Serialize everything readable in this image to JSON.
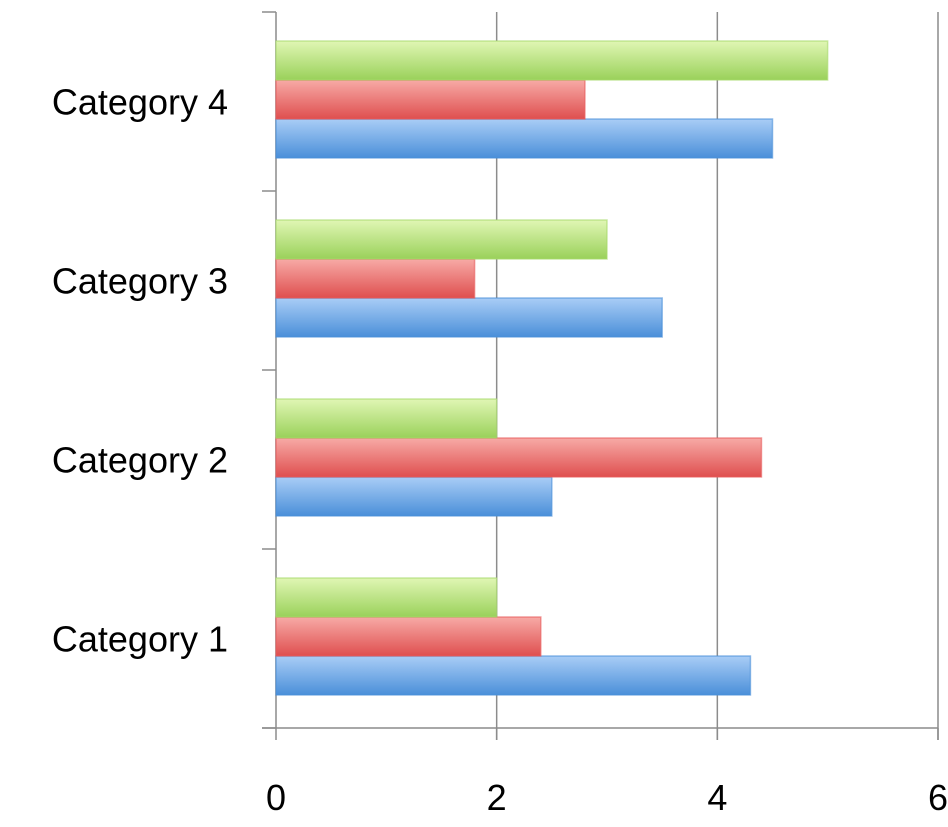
{
  "chart_data": {
    "type": "bar",
    "orientation": "horizontal",
    "categories": [
      "Category 1",
      "Category 2",
      "Category 3",
      "Category 4"
    ],
    "series": [
      {
        "values": [
          4.3,
          2.5,
          3.5,
          4.5
        ],
        "color": "#4a8fd9"
      },
      {
        "values": [
          2.4,
          4.4,
          1.8,
          2.8
        ],
        "color": "#e85b5b"
      },
      {
        "values": [
          2.0,
          2.0,
          3.0,
          5.0
        ],
        "color": "#a6d96a"
      }
    ],
    "x_ticks": [
      "0",
      "2",
      "4",
      "6"
    ],
    "xlim": [
      0,
      6
    ],
    "grid": true,
    "legend": "none"
  }
}
